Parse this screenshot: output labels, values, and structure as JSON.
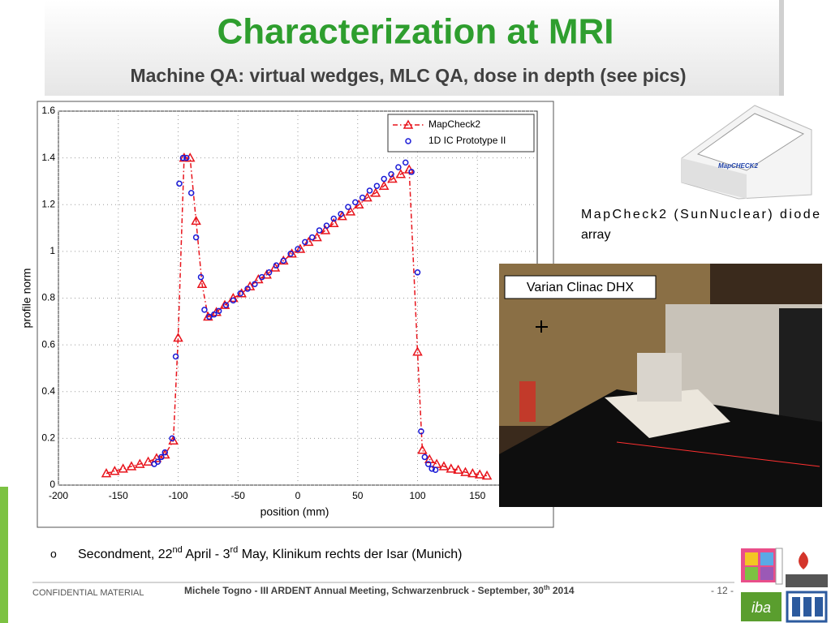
{
  "slide": {
    "title": "Characterization at MRI",
    "subtitle": "Machine QA: virtual wedges, MLC QA, dose in depth (see pics)",
    "device_caption": [
      "MapCheck2 (SunNuclear) diode",
      "array"
    ],
    "photo_label": "Varian Clinac DHX",
    "bullet": {
      "marker": "o",
      "parts": [
        "Secondment, 22",
        "nd",
        " April - 3",
        "rd",
        " May, Klinikum rechts der Isar (Munich)"
      ]
    },
    "footer": {
      "left": "CONFIDENTIAL MATERIAL",
      "center": [
        "Michele Togno - III ARDENT Annual Meeting, Schwarzenbruck - September, 30",
        "th",
        " 2014"
      ],
      "page": "- 12 -"
    }
  },
  "chart_data": {
    "type": "scatter",
    "xlabel": "position (mm)",
    "ylabel": "profile norm",
    "xlim": [
      -200,
      200
    ],
    "xticks": [
      -200,
      -150,
      -100,
      -50,
      0,
      50,
      100,
      150
    ],
    "ylim": [
      0,
      1.6
    ],
    "yticks": [
      0,
      0.2,
      0.4,
      0.6,
      0.8,
      1,
      1.2,
      1.4,
      1.6
    ],
    "legend": "top right",
    "series": [
      {
        "name": "MapCheck2",
        "color": "#e8141c",
        "marker": "triangle",
        "line": "dash-dot",
        "x": [
          -160,
          -153,
          -146,
          -139,
          -132,
          -125,
          -118,
          -111,
          -104,
          -100,
          -95,
          -90,
          -85,
          -80,
          -75,
          -68,
          -61,
          -54,
          -47,
          -40,
          -33,
          -26,
          -19,
          -12,
          -5,
          2,
          9,
          16,
          23,
          30,
          37,
          44,
          51,
          58,
          65,
          72,
          79,
          86,
          93,
          100,
          104,
          110,
          116,
          122,
          128,
          134,
          140,
          146,
          152,
          158
        ],
        "values": [
          0.05,
          0.06,
          0.07,
          0.08,
          0.09,
          0.1,
          0.115,
          0.13,
          0.19,
          0.63,
          1.4,
          1.4,
          1.13,
          0.86,
          0.72,
          0.74,
          0.77,
          0.8,
          0.82,
          0.85,
          0.88,
          0.9,
          0.93,
          0.96,
          0.99,
          1.01,
          1.04,
          1.06,
          1.09,
          1.12,
          1.15,
          1.17,
          1.2,
          1.23,
          1.25,
          1.28,
          1.31,
          1.33,
          1.35,
          0.57,
          0.15,
          0.11,
          0.09,
          0.08,
          0.07,
          0.065,
          0.055,
          0.05,
          0.045,
          0.04
        ]
      },
      {
        "name": "1D IC Prototype II",
        "color": "#1a1ad6",
        "marker": "circle",
        "x": [
          -120,
          -117,
          -114,
          -111,
          -105,
          -102,
          -99,
          -96,
          -93,
          -89,
          -85,
          -81,
          -78,
          -74,
          -70,
          -66,
          -60,
          -54,
          -48,
          -42,
          -36,
          -30,
          -24,
          -18,
          -12,
          -6,
          0,
          6,
          12,
          18,
          24,
          30,
          36,
          42,
          48,
          54,
          60,
          66,
          72,
          78,
          84,
          90,
          95,
          100,
          103,
          106,
          109,
          112,
          115
        ],
        "values": [
          0.09,
          0.1,
          0.12,
          0.14,
          0.2,
          0.55,
          1.29,
          1.4,
          1.4,
          1.25,
          1.06,
          0.89,
          0.75,
          0.72,
          0.73,
          0.745,
          0.77,
          0.79,
          0.82,
          0.84,
          0.86,
          0.89,
          0.91,
          0.94,
          0.96,
          0.99,
          1.01,
          1.04,
          1.06,
          1.09,
          1.11,
          1.14,
          1.16,
          1.19,
          1.21,
          1.23,
          1.26,
          1.28,
          1.31,
          1.33,
          1.36,
          1.38,
          1.34,
          0.91,
          0.23,
          0.12,
          0.09,
          0.07,
          0.065
        ]
      }
    ]
  }
}
